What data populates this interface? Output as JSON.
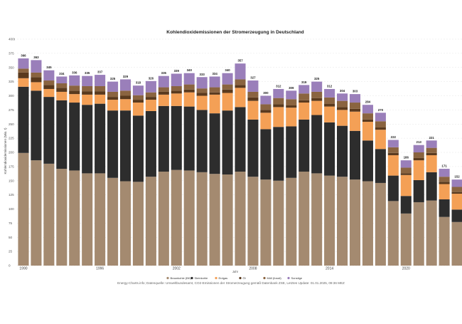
{
  "colors": {
    "Braunkohle": "#a48a70",
    "Steinkohle": "#2d2d2d",
    "Erdgas": "#f4a056",
    "Öl": "#5a3a1e",
    "Müll (fossil)": "#8a6440",
    "Sonstige": "#9a7fba"
  },
  "chart_data": {
    "type": "bar",
    "stacked": true,
    "title": "Kohlendioxidemissionen der Stromerzeugung in Deutschland",
    "xlabel": "Jahr",
    "ylabel": "Kohlendioxidemissionen (Mio. t)",
    "ylim": [
      0,
      400
    ],
    "ytick_values": [
      0,
      25,
      50,
      75,
      100,
      125,
      150,
      175,
      200,
      225,
      250,
      275,
      300,
      325,
      350,
      375,
      400
    ],
    "yticks": [
      "0",
      "25",
      "50",
      "75",
      "100",
      "125",
      "150",
      "175",
      "200",
      "225",
      "250",
      "275",
      "300",
      "325",
      "350",
      "375",
      "400t"
    ],
    "xtick_labels": [
      "1990",
      "1996",
      "2002",
      "2008",
      "2014",
      "2020"
    ],
    "categories": [
      "1990",
      "1991",
      "1992",
      "1993",
      "1994",
      "1995",
      "1996",
      "1997",
      "1998",
      "1999",
      "2000",
      "2001",
      "2002",
      "2003",
      "2004",
      "2005",
      "2006",
      "2007",
      "2008",
      "2009",
      "2010",
      "2011",
      "2012",
      "2013",
      "2014",
      "2015",
      "2016",
      "2017",
      "2018",
      "2019",
      "2020",
      "2021",
      "2022",
      "2023",
      "2024"
    ],
    "totals": [
      "366",
      "363",
      "345",
      "334",
      "336",
      "335",
      "337",
      "325",
      "329",
      "318",
      "326",
      "335",
      "339",
      "340",
      "333",
      "334",
      "340",
      "357",
      "327",
      "300",
      "312",
      "309",
      "319",
      "325",
      "312",
      "304",
      "303",
      "284",
      "270",
      "222",
      "186",
      "213",
      "221",
      "171",
      "152"
    ],
    "series": [
      {
        "name": "Braunkohle (BK)",
        "values": [
          199,
          186,
          180,
          171,
          168,
          163,
          163,
          155,
          149,
          148,
          157,
          166,
          169,
          168,
          165,
          162,
          161,
          166,
          157,
          152,
          150,
          155,
          166,
          163,
          159,
          157,
          152,
          149,
          146,
          114,
          92,
          112,
          115,
          86,
          77
        ]
      },
      {
        "name": "Steinkohle",
        "values": [
          117,
          123,
          118,
          121,
          120,
          121,
          123,
          119,
          125,
          117,
          116,
          116,
          113,
          113,
          110,
          107,
          113,
          114,
          101,
          89,
          95,
          91,
          92,
          103,
          94,
          90,
          86,
          72,
          60,
          45,
          31,
          39,
          50,
          31,
          22
        ]
      },
      {
        "name": "Erdgas",
        "values": [
          15,
          15,
          14,
          15,
          15,
          18,
          16,
          19,
          20,
          23,
          20,
          20,
          22,
          25,
          25,
          33,
          31,
          34,
          33,
          29,
          35,
          33,
          30,
          25,
          28,
          28,
          34,
          33,
          34,
          36,
          37,
          35,
          30,
          27,
          28
        ]
      },
      {
        "name": "Öl",
        "values": [
          10,
          9,
          7,
          7,
          6,
          6,
          6,
          5,
          6,
          5,
          5,
          5,
          5,
          5,
          5,
          4,
          6,
          5,
          6,
          5,
          5,
          4,
          4,
          5,
          5,
          5,
          5,
          4,
          4,
          4,
          3,
          4,
          4,
          4,
          3
        ]
      },
      {
        "name": "Müll (fossil)",
        "values": [
          7,
          8,
          8,
          8,
          9,
          9,
          9,
          9,
          9,
          8,
          8,
          8,
          8,
          9,
          8,
          9,
          9,
          10,
          10,
          10,
          11,
          11,
          12,
          11,
          11,
          11,
          11,
          11,
          11,
          10,
          10,
          10,
          9,
          9,
          9
        ]
      },
      {
        "name": "Sonstige",
        "values": [
          18,
          22,
          18,
          12,
          18,
          18,
          20,
          18,
          20,
          17,
          20,
          20,
          22,
          20,
          20,
          19,
          20,
          28,
          20,
          15,
          16,
          15,
          15,
          18,
          15,
          13,
          15,
          15,
          15,
          13,
          13,
          13,
          13,
          14,
          13
        ]
      }
    ],
    "legend": [
      "Braunkohle (BK)",
      "Steinkohle",
      "Erdgas",
      "Öl",
      "Müll (fossil)",
      "Sonstige"
    ],
    "legend_position": "bottom-center",
    "grid": true
  },
  "source_text": "Energy-Charts.info; Datenquelle: Umweltbundesamt, CO2-Emissionen der Stromerzeugung gemäß Datenbank ZSE, Letztes Update: 01.01.2025, 09:36 MEZ"
}
